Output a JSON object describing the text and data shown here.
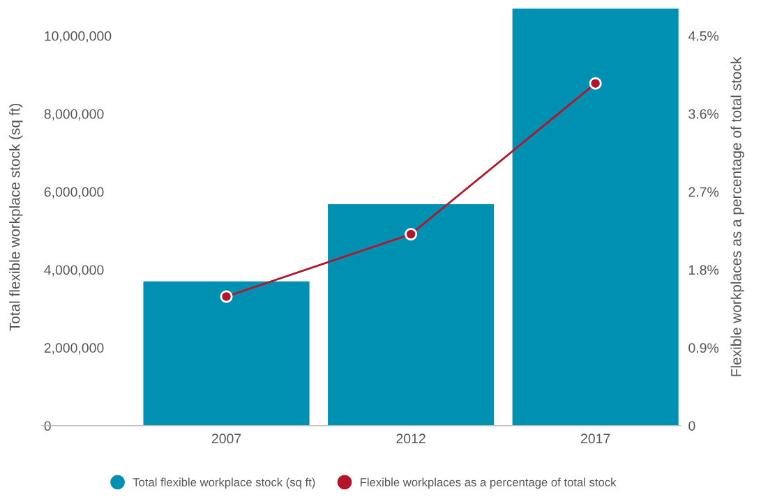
{
  "chart_data": {
    "type": "bar",
    "categories": [
      "2007",
      "2012",
      "2017"
    ],
    "ylabel": "Total flexible workplace stock (sq ft)",
    "y2label": "Flexible workplaces as a percentage of total stock",
    "series": [
      {
        "name": "Total flexible workplace stock (sq ft)",
        "color": "#0090b2",
        "values": [
          3700000,
          5680000,
          10700000
        ]
      },
      {
        "name": "Flexible workplaces as a percentage of total stock",
        "type": "line",
        "axis": "y2",
        "color": "#b5152b",
        "marker": "circle",
        "values": [
          1.49,
          2.21,
          3.95
        ]
      }
    ],
    "ylim": [
      0,
      10700000
    ],
    "yticks": [
      {
        "value": 0,
        "label": "0"
      },
      {
        "value": 2000000,
        "label": "2,000,000"
      },
      {
        "value": 4000000,
        "label": "4,000,000"
      },
      {
        "value": 6000000,
        "label": "6,000,000"
      },
      {
        "value": 8000000,
        "label": "8,000,000"
      },
      {
        "value": 10000000,
        "label": "10,000,000"
      }
    ],
    "y2lim": [
      0,
      4.815
    ],
    "y2ticks": [
      {
        "value": 0,
        "label": "0"
      },
      {
        "value": 0.9,
        "label": "0.9%"
      },
      {
        "value": 1.8,
        "label": "1.8%"
      },
      {
        "value": 2.7,
        "label": "2.7%"
      },
      {
        "value": 3.6,
        "label": "3.6%"
      },
      {
        "value": 4.5,
        "label": "4.5%"
      }
    ],
    "grid": false,
    "legend": "bottom"
  }
}
